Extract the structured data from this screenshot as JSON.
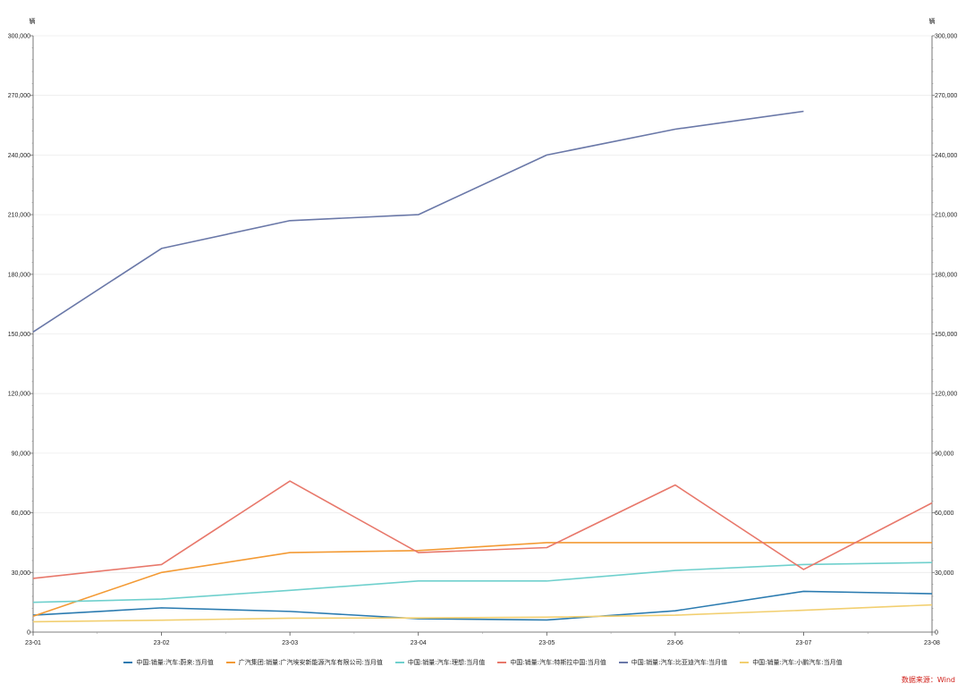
{
  "chart_data": {
    "type": "line",
    "categories": [
      "23-01",
      "23-02",
      "23-03",
      "23-04",
      "23-05",
      "23-06",
      "23-07",
      "23-08"
    ],
    "ylim": [
      0,
      300000
    ],
    "yticks": [
      "0",
      "30,000",
      "60,000",
      "90,000",
      "120,000",
      "150,000",
      "180,000",
      "210,000",
      "240,000",
      "270,000",
      "300,000"
    ],
    "ylabel_left": "辆",
    "ylabel_right": "辆",
    "grid": true,
    "legend_position": "bottom",
    "series": [
      {
        "name": "中国:销量:汽车:蔚来:当月值",
        "color": "#2b7bb0",
        "values": [
          8500,
          12200,
          10400,
          6700,
          6100,
          10700,
          20500,
          19300
        ]
      },
      {
        "name": "广汽集团:销量:广汽埃安新能源汽车有限公司:当月值",
        "color": "#f39a34",
        "values": [
          8000,
          30000,
          40000,
          41000,
          45000,
          45000,
          45000,
          45000
        ]
      },
      {
        "name": "中国:销量:汽车:理想:当月值",
        "color": "#6fd0cd",
        "values": [
          15000,
          16600,
          21000,
          25700,
          25700,
          31000,
          34000,
          35000
        ]
      },
      {
        "name": "中国:销量:汽车:特斯拉中国:当月值",
        "color": "#e8786b",
        "values": [
          27000,
          34000,
          76000,
          40000,
          42500,
          74000,
          31500,
          65000
        ]
      },
      {
        "name": "中国:销量:汽车:比亚迪汽车:当月值",
        "color": "#6a78a8",
        "values": [
          151000,
          193000,
          207000,
          210000,
          240000,
          253000,
          262000,
          null
        ]
      },
      {
        "name": "中国:销量:汽车:小鹏汽车:当月值",
        "color": "#f2cf70",
        "values": [
          5200,
          6000,
          7000,
          7100,
          7500,
          8500,
          11000,
          13700
        ]
      }
    ]
  },
  "source_text": "数据来源：Wind"
}
